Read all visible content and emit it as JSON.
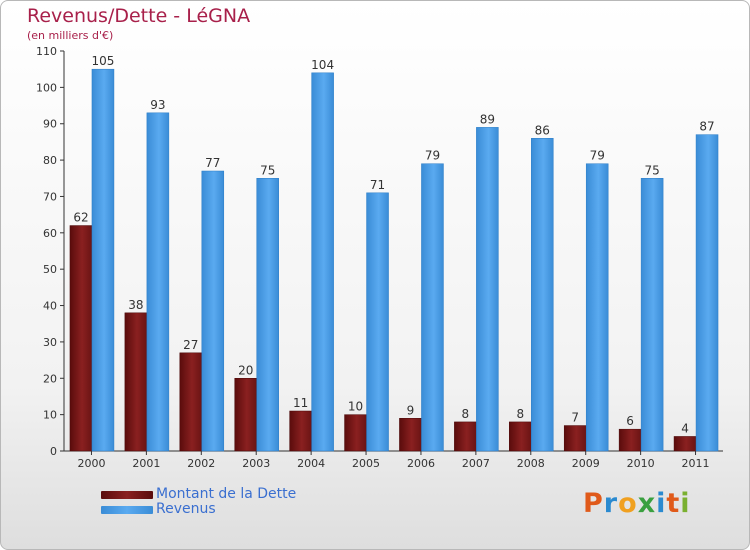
{
  "title": "Revenus/Dette - LéGNA",
  "subtitle": "(en milliers d'€)",
  "logo": "Proxiti",
  "colors": {
    "dette": "#7a1818",
    "revenus": "#4a9fe3",
    "axis": "#333333",
    "title": "#a8204a"
  },
  "chart_data": {
    "type": "bar",
    "title": "Revenus/Dette - LéGNA",
    "subtitle": "(en milliers d'€)",
    "xlabel": "",
    "ylabel": "",
    "categories": [
      "2000",
      "2001",
      "2002",
      "2003",
      "2004",
      "2005",
      "2006",
      "2007",
      "2008",
      "2009",
      "2010",
      "2011"
    ],
    "ylim": [
      0,
      110
    ],
    "yticks": [
      0,
      10,
      20,
      30,
      40,
      50,
      60,
      70,
      80,
      90,
      100,
      110
    ],
    "grid": false,
    "legend_position": "bottom-left",
    "series": [
      {
        "name": "Montant de la Dette",
        "color": "#7a1818",
        "values": [
          62,
          38,
          27,
          20,
          11,
          10,
          9,
          8,
          8,
          7,
          6,
          4
        ]
      },
      {
        "name": "Revenus",
        "color": "#4a9fe3",
        "values": [
          105,
          93,
          77,
          75,
          104,
          71,
          79,
          89,
          86,
          79,
          75,
          87
        ]
      }
    ]
  }
}
